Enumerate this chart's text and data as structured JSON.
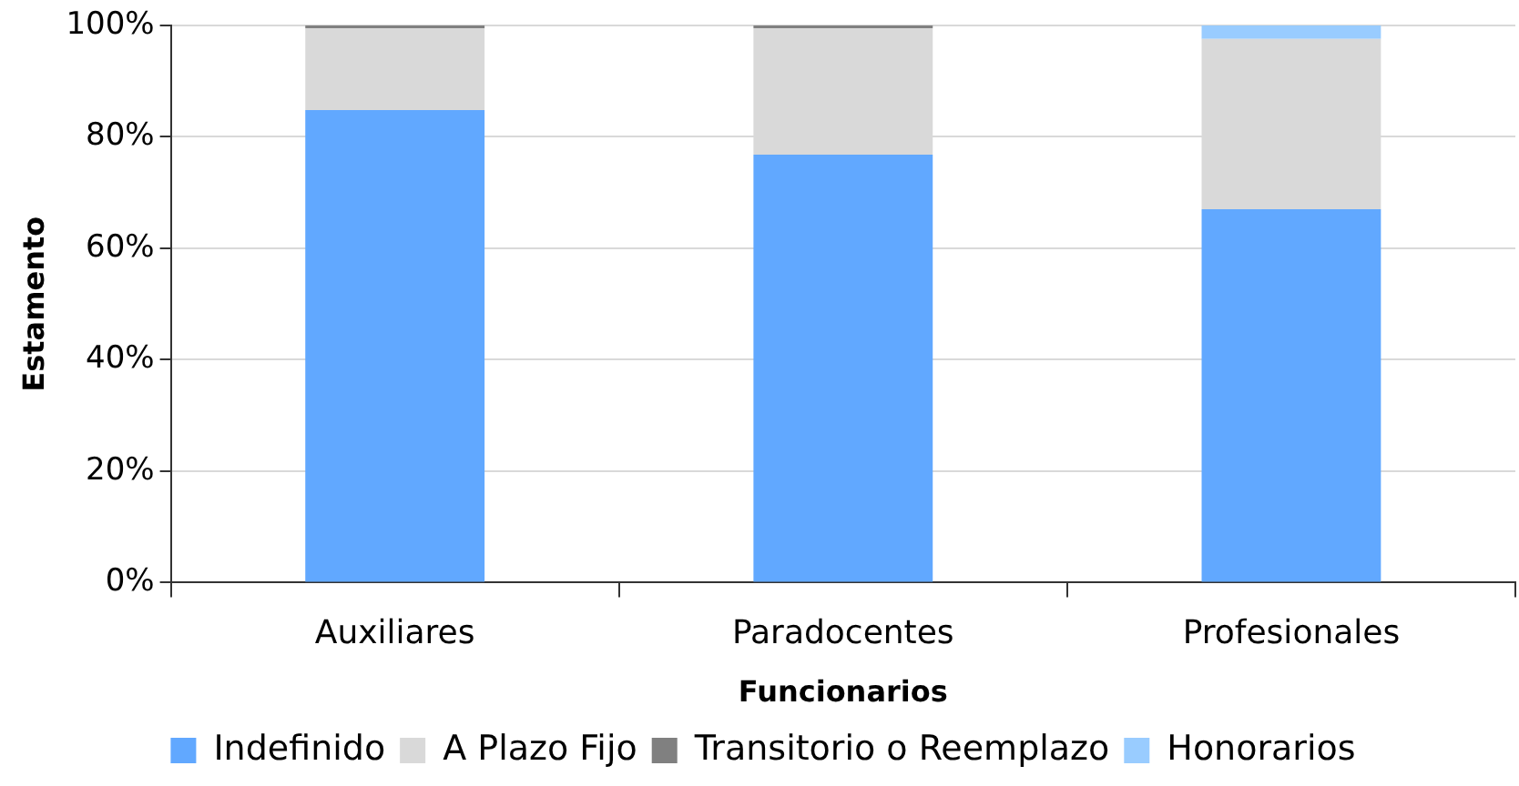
{
  "chart_data": {
    "type": "bar",
    "stacked": true,
    "xlabel": "Funcionarios",
    "ylabel": "Estamento",
    "categories": [
      "Auxiliares",
      "Paradocentes",
      "Profesionales"
    ],
    "series": [
      {
        "name": "Indefinido",
        "color": "#61a8ff",
        "values": [
          84.8,
          76.8,
          67.0
        ]
      },
      {
        "name": "A Plazo Fijo",
        "color": "#d9d9d9",
        "values": [
          14.7,
          22.7,
          30.6
        ]
      },
      {
        "name": "Transitorio o Reemplazo",
        "color": "#808080",
        "values": [
          0.5,
          0.5,
          0
        ]
      },
      {
        "name": "Honorarios",
        "color": "#99ccff",
        "values": [
          0,
          0,
          2.4
        ]
      }
    ],
    "ylim": [
      0,
      100
    ],
    "yticks": [
      {
        "value": 0,
        "label": "0%"
      },
      {
        "value": 20,
        "label": "20%"
      },
      {
        "value": 40,
        "label": "40%"
      },
      {
        "value": 60,
        "label": "60%"
      },
      {
        "value": 80,
        "label": "80%"
      },
      {
        "value": 100,
        "label": "100%"
      }
    ],
    "grid": "y",
    "legend": "bottom"
  }
}
